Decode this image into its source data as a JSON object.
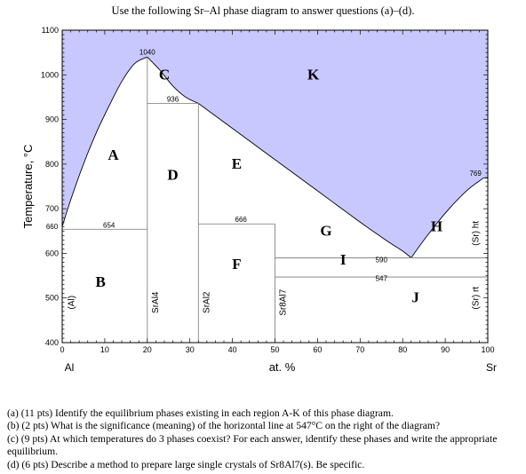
{
  "header": "Use the following Sr–Al phase diagram to answer questions (a)–(d).",
  "chart_data": {
    "type": "phase-diagram",
    "xlabel": "at. %",
    "ylabel": "Temperature, °C",
    "xlim": [
      0,
      100
    ],
    "ylim": [
      400,
      1100
    ],
    "x_ticks": [
      0,
      10,
      20,
      30,
      40,
      50,
      60,
      70,
      80,
      90,
      100
    ],
    "y_ticks": [
      400,
      500,
      600,
      700,
      800,
      900,
      1000,
      1100
    ],
    "x_end_labels": {
      "left": "Al",
      "right": "Sr"
    },
    "liquid_fill_color": "#c8c8ff",
    "liquidus": {
      "al_side": [
        [
          0,
          660
        ],
        [
          2,
          720
        ],
        [
          5,
          800
        ],
        [
          8,
          870
        ],
        [
          11,
          930
        ],
        [
          14,
          985
        ],
        [
          17,
          1025
        ],
        [
          20,
          1040
        ]
      ],
      "dome_right": [
        [
          20,
          1040
        ],
        [
          23,
          1010
        ],
        [
          26,
          975
        ],
        [
          29,
          950
        ],
        [
          32,
          936
        ]
      ],
      "sral2_to_eutectic": [
        [
          32,
          936
        ],
        [
          40,
          880
        ],
        [
          50,
          810
        ],
        [
          60,
          740
        ],
        [
          70,
          670
        ],
        [
          76,
          630
        ],
        [
          80,
          605
        ],
        [
          82,
          590
        ]
      ],
      "eutectic_to_sr": [
        [
          82,
          590
        ],
        [
          85,
          630
        ],
        [
          90,
          690
        ],
        [
          95,
          740
        ],
        [
          99,
          769
        ]
      ]
    },
    "horizontal_lines": [
      {
        "y": 654,
        "x1": 0,
        "x2": 20,
        "label": "654"
      },
      {
        "y": 936,
        "x1": 20,
        "x2": 32,
        "label": "936"
      },
      {
        "y": 666,
        "x1": 32,
        "x2": 50,
        "label": "666"
      },
      {
        "y": 590,
        "x1": 50,
        "x2": 100,
        "label": "590"
      },
      {
        "y": 547,
        "x1": 50,
        "x2": 100,
        "label": "547"
      }
    ],
    "vertical_lines": [
      {
        "x": 20,
        "y1": 400,
        "y2": 1040,
        "label": "SrAl4"
      },
      {
        "x": 32,
        "y1": 400,
        "y2": 936,
        "label": "SrAl2"
      },
      {
        "x": 50,
        "y1": 400,
        "y2": 666,
        "label": "Sr8Al7"
      }
    ],
    "annotations": [
      {
        "text": "1040",
        "x": 20,
        "y": 1040
      },
      {
        "text": "660",
        "x": 0,
        "y": 660
      },
      {
        "text": "769",
        "x": 99,
        "y": 769
      }
    ],
    "regions": [
      {
        "label": "A",
        "x": 12,
        "y": 810
      },
      {
        "label": "B",
        "x": 9,
        "y": 525
      },
      {
        "label": "C",
        "x": 24,
        "y": 990
      },
      {
        "label": "D",
        "x": 26,
        "y": 765
      },
      {
        "label": "E",
        "x": 41,
        "y": 790
      },
      {
        "label": "F",
        "x": 41,
        "y": 565
      },
      {
        "label": "G",
        "x": 62,
        "y": 640
      },
      {
        "label": "H",
        "x": 88,
        "y": 650
      },
      {
        "label": "I",
        "x": 66,
        "y": 575
      },
      {
        "label": "J",
        "x": 83,
        "y": 490
      },
      {
        "label": "K",
        "x": 59,
        "y": 990
      }
    ],
    "phase_labels": [
      {
        "text": "(Al)",
        "x": 2,
        "y": 490
      },
      {
        "text": "(Sr) rt",
        "x": 97,
        "y": 500
      },
      {
        "text": "(Sr) ht",
        "x": 97,
        "y": 645
      }
    ]
  },
  "questions": [
    "(a) (11 pts) Identify the equilibrium phases existing in each region A-K of this phase diagram.",
    "(b) (2 pts) What is the significance (meaning) of the horizontal line at 547°C on the right of the diagram?",
    "(c) (9 pts) At which temperatures do 3 phases coexist? For each answer, identify these phases and write the appropriate equilibrium.",
    "(d) (6 pts) Describe a method to prepare large single crystals of Sr8Al7(s). Be specific."
  ]
}
